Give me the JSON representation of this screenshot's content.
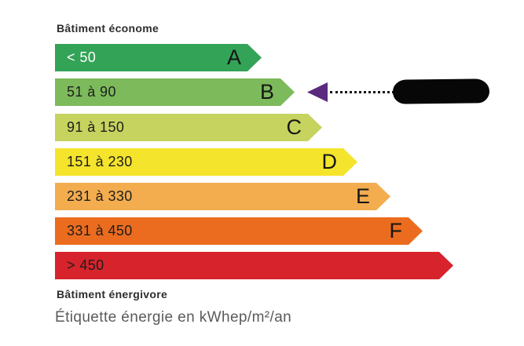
{
  "page": {
    "background": "#ffffff"
  },
  "header": {
    "top_label": "Bâtiment économe"
  },
  "footer": {
    "bottom_label": "Bâtiment énergivore",
    "caption": "Étiquette énergie en kWhep/m²/an"
  },
  "pointer": {
    "target_class": "B",
    "color": "#5b2a7e",
    "value_redacted": true
  },
  "chart_data": {
    "type": "bar",
    "orientation": "horizontal",
    "title": "Étiquette énergie en kWhep/m²/an",
    "unit": "kWhep/m²/an",
    "top_label": "Bâtiment économe",
    "bottom_label": "Bâtiment énergivore",
    "selected_class": "B",
    "legend_position": "none",
    "grid": false,
    "classes": [
      {
        "letter": "A",
        "range": "< 50",
        "color": "#33a357",
        "range_text_color": "#ffffff"
      },
      {
        "letter": "B",
        "range": "51 à 90",
        "color": "#7cba5b",
        "range_text_color": "#1e1e1e"
      },
      {
        "letter": "C",
        "range": "91 à 150",
        "color": "#c6d35f",
        "range_text_color": "#1e1e1e"
      },
      {
        "letter": "D",
        "range": "151 à 230",
        "color": "#f4e42c",
        "range_text_color": "#1e1e1e"
      },
      {
        "letter": "E",
        "range": "231 à 330",
        "color": "#f3ad4f",
        "range_text_color": "#1e1e1e"
      },
      {
        "letter": "F",
        "range": "331 à 450",
        "color": "#eb6c1e",
        "range_text_color": "#1e1e1e"
      },
      {
        "letter": "",
        "range": "> 450",
        "color": "#d7232b",
        "range_text_color": "#1e1e1e"
      }
    ]
  }
}
